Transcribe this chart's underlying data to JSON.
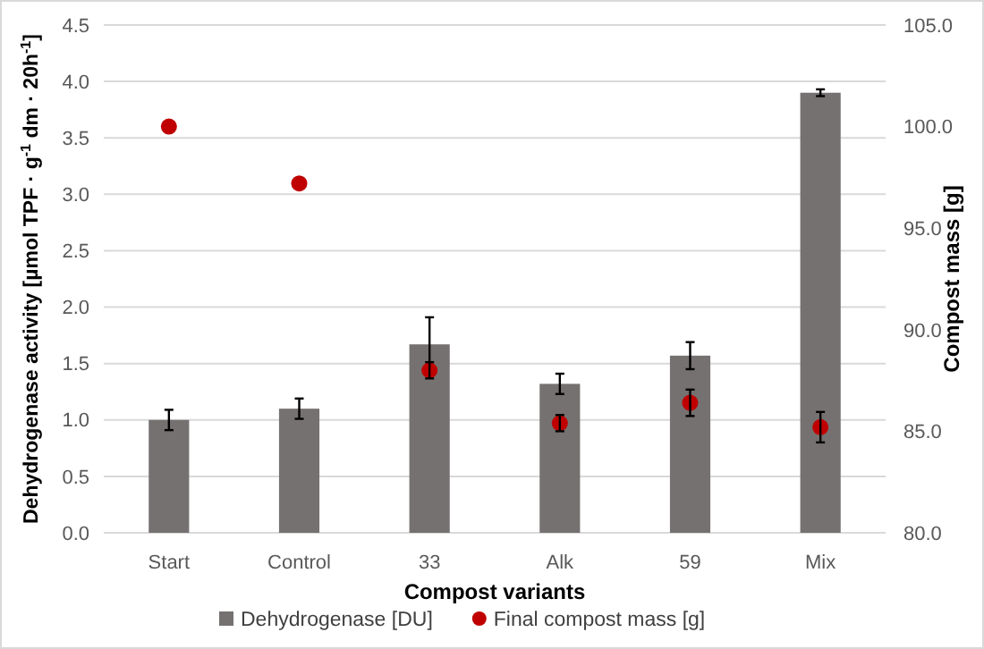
{
  "chart_data": {
    "type": "bar",
    "xlabel": "Compost variants",
    "ylabel": "Dehydrogenase activity [µmol TPF · g$^{-1}$ dm · 20h$^{-1}$]",
    "y2label": "Compost mass [g]",
    "categories": [
      "Start",
      "Control",
      "33",
      "Alk",
      "59",
      "Mix"
    ],
    "series": [
      {
        "name": "Dehydrogenase [DU]",
        "color": "#767171",
        "values": [
          1.0,
          1.1,
          1.67,
          1.32,
          1.57,
          3.9
        ],
        "errors": [
          0.09,
          0.09,
          0.24,
          0.09,
          0.12,
          0.03
        ]
      },
      {
        "name": "Final compost mass [g]",
        "type": "scatter",
        "axis": "y2",
        "color": "#c00000",
        "marker": "circle",
        "values": [
          100.0,
          97.2,
          88.0,
          85.4,
          86.4,
          85.2
        ],
        "errors": [
          null,
          null,
          0.4,
          0.4,
          0.65,
          0.75
        ]
      }
    ],
    "ylim": [
      0,
      4.5
    ],
    "yticks": [
      {
        "value": 0,
        "label": "0.0"
      },
      {
        "value": 0.5,
        "label": "0.5"
      },
      {
        "value": 1,
        "label": "1.0"
      },
      {
        "value": 1.5,
        "label": "1.5"
      },
      {
        "value": 2,
        "label": "2.0"
      },
      {
        "value": 2.5,
        "label": "2.5"
      },
      {
        "value": 3,
        "label": "3.0"
      },
      {
        "value": 3.5,
        "label": "3.5"
      },
      {
        "value": 4,
        "label": "4.0"
      },
      {
        "value": 4.5,
        "label": "4.5"
      }
    ],
    "y2lim": [
      80,
      105
    ],
    "y2ticks": [
      {
        "value": 80,
        "label": "80.0"
      },
      {
        "value": 85,
        "label": "85.0"
      },
      {
        "value": 90,
        "label": "90.0"
      },
      {
        "value": 95,
        "label": "95.0"
      },
      {
        "value": 100,
        "label": "100.0"
      },
      {
        "value": 105,
        "label": "105.0"
      }
    ],
    "grid": "y",
    "legend": "bottom"
  }
}
